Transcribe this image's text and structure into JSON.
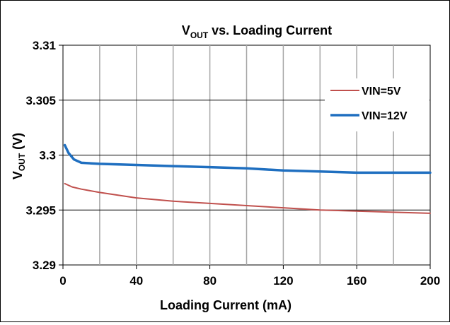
{
  "chart_data": {
    "type": "line",
    "title_main": "V",
    "title_sub": "OUT",
    "title_rest": "  vs. Loading Current",
    "xlabel": "Loading Current (mA)",
    "ylabel_main": "V",
    "ylabel_sub": "OUT",
    "ylabel_rest": " (V)",
    "xlim": [
      0,
      200
    ],
    "ylim": [
      3.29,
      3.31
    ],
    "x_ticks": [
      0,
      40,
      80,
      120,
      160,
      200
    ],
    "x_tick_labels": [
      "0",
      "40",
      "80",
      "120",
      "160",
      "200"
    ],
    "x_minor_grid": [
      20,
      60,
      100,
      140,
      180
    ],
    "y_ticks": [
      3.29,
      3.295,
      3.3,
      3.305,
      3.31
    ],
    "y_tick_labels": [
      "3.29",
      "3.295",
      "3.3",
      "3.305",
      "3.31"
    ],
    "grid": true,
    "legend_position": "right",
    "series": [
      {
        "name": "VIN=5V",
        "color": "#c0504d",
        "x": [
          1,
          5,
          10,
          20,
          40,
          60,
          80,
          100,
          120,
          140,
          160,
          180,
          200
        ],
        "y": [
          3.2974,
          3.2971,
          3.2969,
          3.2966,
          3.2961,
          3.2958,
          3.2956,
          3.2954,
          3.2952,
          3.295,
          3.2949,
          3.2948,
          3.2947
        ]
      },
      {
        "name": "VIN=12V",
        "color": "#1f6fc0",
        "x": [
          1,
          3,
          6,
          10,
          20,
          40,
          60,
          80,
          100,
          120,
          140,
          160,
          180,
          200
        ],
        "y": [
          3.3009,
          3.3002,
          3.2996,
          3.2993,
          3.2992,
          3.2991,
          3.299,
          3.2989,
          3.2988,
          3.2986,
          3.2985,
          3.2984,
          3.2984,
          3.2984
        ]
      }
    ]
  }
}
